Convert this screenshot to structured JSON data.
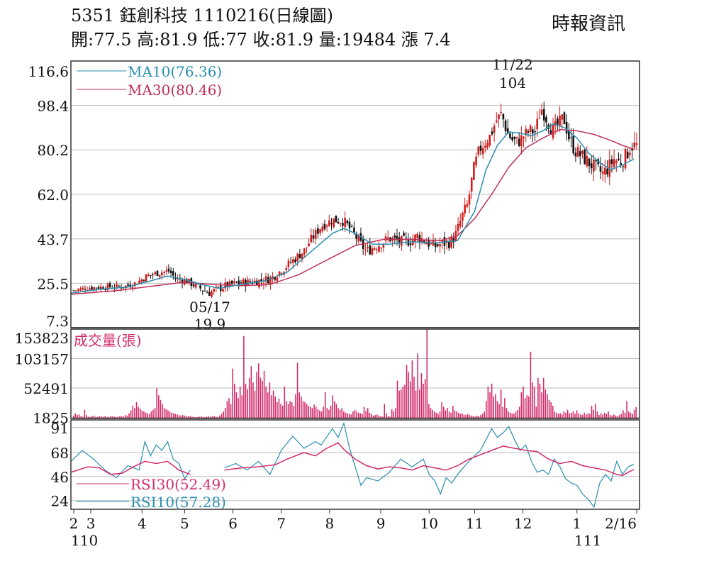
{
  "header": {
    "title": "5351  鈺創科技 1110216(日線圖)",
    "source": "時報資訊",
    "quote": "開:77.5 高:81.9 低:77 收:81.9 量:19484 漲 7.4"
  },
  "colors": {
    "ma10": "#2a8fb0",
    "ma30": "#c0305a",
    "volume": "#d22a6a",
    "rsi30": "#d22a6a",
    "rsi10": "#2a8fb0",
    "candle_up": "#d11a1a",
    "candle_down": "#111111",
    "grid": "#bbbbbb",
    "frame": "#333333"
  },
  "chart_data": [
    {
      "type": "candlestick",
      "ylim": [
        7.3,
        116.6
      ],
      "yticks": [
        "116.6",
        "98.4",
        "80.2",
        "62.0",
        "43.7",
        "25.5",
        "7.3"
      ],
      "grid": true,
      "legend": [
        "MA10(76.36)",
        "MA30(80.46)"
      ],
      "annotations": [
        {
          "date": "11/22",
          "value": "104"
        },
        {
          "date": "05/17",
          "value": "19.9"
        }
      ],
      "x_month_labels": [
        "2",
        "3",
        "4",
        "5",
        "6",
        "7",
        "8",
        "9",
        "10",
        "11",
        "12",
        "1",
        "2/16"
      ],
      "x_year_labels": [
        "110",
        "111"
      ],
      "close_path": [
        [
          0,
          22.5
        ],
        [
          0.02,
          23.5
        ],
        [
          0.05,
          24.0
        ],
        [
          0.07,
          24.0
        ],
        [
          0.09,
          24.2
        ],
        [
          0.11,
          25.5
        ],
        [
          0.13,
          28.5
        ],
        [
          0.15,
          29.8
        ],
        [
          0.17,
          30.5
        ],
        [
          0.18,
          27.5
        ],
        [
          0.2,
          26.5
        ],
        [
          0.22,
          24.0
        ],
        [
          0.24,
          21.5
        ],
        [
          0.25,
          22.5
        ],
        [
          0.27,
          24.5
        ],
        [
          0.29,
          25.5
        ],
        [
          0.31,
          26.0
        ],
        [
          0.33,
          26.5
        ],
        [
          0.35,
          27.5
        ],
        [
          0.37,
          31.0
        ],
        [
          0.39,
          35.0
        ],
        [
          0.41,
          39.0
        ],
        [
          0.42,
          43.0
        ],
        [
          0.44,
          49.0
        ],
        [
          0.46,
          51.5
        ],
        [
          0.48,
          51.0
        ],
        [
          0.5,
          45.0
        ],
        [
          0.51,
          41.5
        ],
        [
          0.52,
          38.5
        ],
        [
          0.53,
          40.0
        ],
        [
          0.55,
          42.5
        ],
        [
          0.56,
          44.0
        ],
        [
          0.58,
          42.5
        ],
        [
          0.6,
          43.0
        ],
        [
          0.61,
          45.0
        ],
        [
          0.63,
          42.0
        ],
        [
          0.64,
          40.5
        ],
        [
          0.65,
          41.5
        ],
        [
          0.67,
          42.5
        ],
        [
          0.68,
          46.0
        ],
        [
          0.69,
          53.0
        ],
        [
          0.7,
          58.0
        ],
        [
          0.71,
          72.0
        ],
        [
          0.72,
          80.0
        ],
        [
          0.74,
          86.0
        ],
        [
          0.75,
          92.0
        ],
        [
          0.76,
          95.0
        ],
        [
          0.77,
          87.0
        ],
        [
          0.78,
          84.0
        ],
        [
          0.79,
          83.5
        ],
        [
          0.8,
          86.0
        ],
        [
          0.81,
          88.0
        ],
        [
          0.82,
          87.5
        ],
        [
          0.83,
          97.5
        ],
        [
          0.84,
          93.0
        ],
        [
          0.85,
          88.0
        ],
        [
          0.86,
          90.0
        ],
        [
          0.87,
          93.5
        ],
        [
          0.88,
          85.0
        ],
        [
          0.89,
          80.0
        ],
        [
          0.9,
          78.0
        ],
        [
          0.91,
          76.0
        ],
        [
          0.92,
          74.0
        ],
        [
          0.93,
          72.0
        ],
        [
          0.94,
          70.5
        ],
        [
          0.95,
          73.0
        ],
        [
          0.96,
          76.5
        ],
        [
          0.97,
          75.0
        ],
        [
          0.98,
          77.5
        ],
        [
          0.99,
          81.9
        ]
      ],
      "ma10_path": [
        [
          0,
          21.5
        ],
        [
          0.05,
          23.0
        ],
        [
          0.1,
          24.0
        ],
        [
          0.14,
          26.5
        ],
        [
          0.17,
          28.5
        ],
        [
          0.2,
          27.0
        ],
        [
          0.23,
          25.0
        ],
        [
          0.26,
          23.5
        ],
        [
          0.3,
          25.0
        ],
        [
          0.34,
          26.5
        ],
        [
          0.38,
          30.0
        ],
        [
          0.42,
          38.0
        ],
        [
          0.46,
          46.0
        ],
        [
          0.48,
          48.0
        ],
        [
          0.5,
          46.0
        ],
        [
          0.53,
          41.5
        ],
        [
          0.56,
          41.5
        ],
        [
          0.6,
          42.5
        ],
        [
          0.64,
          42.0
        ],
        [
          0.68,
          43.0
        ],
        [
          0.71,
          55.0
        ],
        [
          0.73,
          72.0
        ],
        [
          0.75,
          82.0
        ],
        [
          0.77,
          87.5
        ],
        [
          0.79,
          87.0
        ],
        [
          0.81,
          86.0
        ],
        [
          0.83,
          88.0
        ],
        [
          0.85,
          91.0
        ],
        [
          0.87,
          89.0
        ],
        [
          0.89,
          85.0
        ],
        [
          0.91,
          79.0
        ],
        [
          0.93,
          75.0
        ],
        [
          0.95,
          72.0
        ],
        [
          0.97,
          74.0
        ],
        [
          0.99,
          76.36
        ]
      ],
      "ma30_path": [
        [
          0,
          21.0
        ],
        [
          0.08,
          22.5
        ],
        [
          0.15,
          24.5
        ],
        [
          0.2,
          26.0
        ],
        [
          0.25,
          25.0
        ],
        [
          0.3,
          24.5
        ],
        [
          0.35,
          25.0
        ],
        [
          0.4,
          29.0
        ],
        [
          0.45,
          35.0
        ],
        [
          0.5,
          41.0
        ],
        [
          0.55,
          43.5
        ],
        [
          0.6,
          43.5
        ],
        [
          0.65,
          43.0
        ],
        [
          0.68,
          45.0
        ],
        [
          0.71,
          52.0
        ],
        [
          0.74,
          62.0
        ],
        [
          0.77,
          73.0
        ],
        [
          0.8,
          81.0
        ],
        [
          0.83,
          85.0
        ],
        [
          0.86,
          88.5
        ],
        [
          0.89,
          88.0
        ],
        [
          0.92,
          86.5
        ],
        [
          0.95,
          84.0
        ],
        [
          0.97,
          82.0
        ],
        [
          0.99,
          80.46
        ]
      ]
    },
    {
      "type": "bar",
      "title": "成交量(張)",
      "ylim": [
        0,
        153823
      ],
      "yticks": [
        "153823",
        "103157",
        "52491",
        "1825"
      ],
      "values": [
        5000,
        9000,
        6000,
        7000,
        4000,
        3000,
        15000,
        6000,
        3000,
        2500,
        4000,
        5000,
        3000,
        2500,
        4000,
        3500,
        3000,
        4000,
        2500,
        3000,
        4000,
        3500,
        3000,
        2500,
        3000,
        4000,
        3500,
        3000,
        6000,
        5000,
        9000,
        14000,
        22000,
        18000,
        28000,
        20000,
        17000,
        14000,
        12000,
        10000,
        9000,
        8000,
        12000,
        15000,
        18000,
        52000,
        40000,
        32000,
        25000,
        18000,
        16000,
        14000,
        12000,
        10000,
        9000,
        8000,
        7000,
        6000,
        5000,
        6000,
        5000,
        4000,
        3500,
        4000,
        3000,
        3000,
        2500,
        2500,
        3000,
        3500,
        3000,
        2500,
        3000,
        4000,
        3000,
        3500,
        4000,
        3000,
        2500,
        5000,
        8000,
        12000,
        18000,
        30000,
        35000,
        25000,
        86000,
        60000,
        45000,
        35000,
        55000,
        40000,
        142000,
        60000,
        50000,
        70000,
        90000,
        62000,
        48000,
        80000,
        95000,
        70000,
        65000,
        82000,
        55000,
        45000,
        62000,
        40000,
        48000,
        38000,
        28000,
        34000,
        25000,
        22000,
        55000,
        30000,
        25000,
        30000,
        28000,
        22000,
        42000,
        96000,
        45000,
        38000,
        30000,
        28000,
        25000,
        22000,
        20000,
        18000,
        24000,
        20000,
        16000,
        14000,
        12000,
        20000,
        45000,
        18000,
        15000,
        22000,
        40000,
        30000,
        25000,
        18000,
        15000,
        18000,
        12000,
        10000,
        9000,
        8000,
        7000,
        12000,
        15000,
        12000,
        10000,
        9000,
        8000,
        20000,
        13000,
        18000,
        10000,
        8000,
        5000,
        6000,
        7000,
        5000,
        4000,
        3000,
        25000,
        9000,
        4000,
        3000,
        16000,
        12000,
        18000,
        65000,
        48000,
        50000,
        55000,
        58000,
        92000,
        80000,
        64000,
        100000,
        72000,
        48000,
        112000,
        50000,
        78000,
        60000,
        68000,
        153823,
        25000,
        18000,
        15000,
        12000,
        10000,
        8000,
        12000,
        28000,
        20000,
        14000,
        18000,
        12000,
        10000,
        22000,
        14000,
        12000,
        10000,
        8000,
        9000,
        7000,
        6000,
        8000,
        6000,
        5000,
        4000,
        3000,
        5000,
        4000,
        6000,
        8000,
        12000,
        30000,
        55000,
        45000,
        60000,
        38000,
        42000,
        30000,
        25000,
        50000,
        20000,
        35000,
        18000,
        12000,
        10000,
        9000,
        8000,
        12000,
        15000,
        20000,
        45000,
        55000,
        35000,
        40000,
        38000,
        115000,
        62000,
        55000,
        20000,
        70000,
        60000,
        45000,
        70000,
        50000,
        42000,
        32000,
        28000,
        22000,
        12000,
        10000,
        8000,
        9000,
        7000,
        12000,
        10000,
        15000,
        9000,
        10000,
        12000,
        8000,
        14000,
        9000,
        7000,
        6000,
        10000,
        7000,
        9000,
        8000,
        22000,
        15000,
        25000,
        12000,
        6000,
        9000,
        7000,
        10000,
        8000,
        12000,
        6000,
        5000,
        7000,
        5000,
        4000,
        6000,
        8000,
        14000,
        10000,
        30000,
        12000,
        10000,
        8000,
        15000,
        19484
      ]
    },
    {
      "type": "line",
      "ylim": [
        16,
        98
      ],
      "yticks": [
        "91",
        "68",
        "46",
        "24"
      ],
      "legend": [
        "RSI30(52.49)",
        "RSI10(57.28)"
      ],
      "rsi30_path": [
        [
          0,
          50
        ],
        [
          0.03,
          55
        ],
        [
          0.05,
          54
        ],
        [
          0.07,
          48
        ],
        [
          0.09,
          49
        ],
        [
          0.11,
          55
        ],
        [
          0.13,
          60
        ],
        [
          0.15,
          58
        ],
        [
          0.17,
          60
        ],
        [
          0.19,
          52
        ],
        [
          0.21,
          48
        ],
        [
          0.27,
          52
        ],
        [
          0.3,
          54
        ],
        [
          0.33,
          55
        ],
        [
          0.36,
          57
        ],
        [
          0.38,
          62
        ],
        [
          0.41,
          68
        ],
        [
          0.43,
          65
        ],
        [
          0.45,
          72
        ],
        [
          0.47,
          77
        ],
        [
          0.48,
          71
        ],
        [
          0.5,
          62
        ],
        [
          0.52,
          56
        ],
        [
          0.54,
          53
        ],
        [
          0.56,
          55
        ],
        [
          0.58,
          54
        ],
        [
          0.6,
          52
        ],
        [
          0.62,
          56
        ],
        [
          0.64,
          54
        ],
        [
          0.66,
          52
        ],
        [
          0.68,
          56
        ],
        [
          0.7,
          62
        ],
        [
          0.72,
          66
        ],
        [
          0.74,
          70
        ],
        [
          0.76,
          74
        ],
        [
          0.78,
          72
        ],
        [
          0.8,
          70
        ],
        [
          0.82,
          69
        ],
        [
          0.84,
          62
        ],
        [
          0.86,
          58
        ],
        [
          0.88,
          60
        ],
        [
          0.9,
          56
        ],
        [
          0.92,
          54
        ],
        [
          0.94,
          52
        ],
        [
          0.96,
          48
        ],
        [
          0.97,
          47
        ],
        [
          0.98,
          50
        ],
        [
          0.99,
          52.49
        ]
      ],
      "rsi10_path": [
        [
          0,
          60
        ],
        [
          0.02,
          70
        ],
        [
          0.04,
          62
        ],
        [
          0.06,
          52
        ],
        [
          0.08,
          45
        ],
        [
          0.1,
          56
        ],
        [
          0.12,
          52
        ],
        [
          0.13,
          78
        ],
        [
          0.14,
          65
        ],
        [
          0.15,
          75
        ],
        [
          0.16,
          70
        ],
        [
          0.17,
          78
        ],
        [
          0.18,
          62
        ],
        [
          0.19,
          58
        ],
        [
          0.2,
          44
        ],
        [
          0.21,
          52
        ],
        [
          0.27,
          54
        ],
        [
          0.29,
          58
        ],
        [
          0.31,
          52
        ],
        [
          0.33,
          60
        ],
        [
          0.35,
          48
        ],
        [
          0.37,
          70
        ],
        [
          0.39,
          83
        ],
        [
          0.41,
          72
        ],
        [
          0.43,
          78
        ],
        [
          0.44,
          75
        ],
        [
          0.46,
          90
        ],
        [
          0.47,
          82
        ],
        [
          0.48,
          95
        ],
        [
          0.49,
          72
        ],
        [
          0.5,
          55
        ],
        [
          0.51,
          38
        ],
        [
          0.52,
          45
        ],
        [
          0.54,
          42
        ],
        [
          0.56,
          50
        ],
        [
          0.58,
          62
        ],
        [
          0.6,
          55
        ],
        [
          0.62,
          62
        ],
        [
          0.63,
          48
        ],
        [
          0.64,
          42
        ],
        [
          0.65,
          30
        ],
        [
          0.66,
          45
        ],
        [
          0.67,
          40
        ],
        [
          0.68,
          48
        ],
        [
          0.7,
          60
        ],
        [
          0.72,
          70
        ],
        [
          0.73,
          80
        ],
        [
          0.74,
          90
        ],
        [
          0.75,
          82
        ],
        [
          0.76,
          86
        ],
        [
          0.77,
          92
        ],
        [
          0.78,
          80
        ],
        [
          0.79,
          70
        ],
        [
          0.8,
          75
        ],
        [
          0.81,
          60
        ],
        [
          0.82,
          50
        ],
        [
          0.83,
          52
        ],
        [
          0.84,
          48
        ],
        [
          0.85,
          62
        ],
        [
          0.86,
          55
        ],
        [
          0.87,
          44
        ],
        [
          0.88,
          40
        ],
        [
          0.89,
          38
        ],
        [
          0.9,
          30
        ],
        [
          0.91,
          25
        ],
        [
          0.92,
          18
        ],
        [
          0.93,
          40
        ],
        [
          0.94,
          48
        ],
        [
          0.95,
          42
        ],
        [
          0.96,
          60
        ],
        [
          0.97,
          48
        ],
        [
          0.98,
          55
        ],
        [
          0.99,
          57.28
        ]
      ]
    }
  ]
}
